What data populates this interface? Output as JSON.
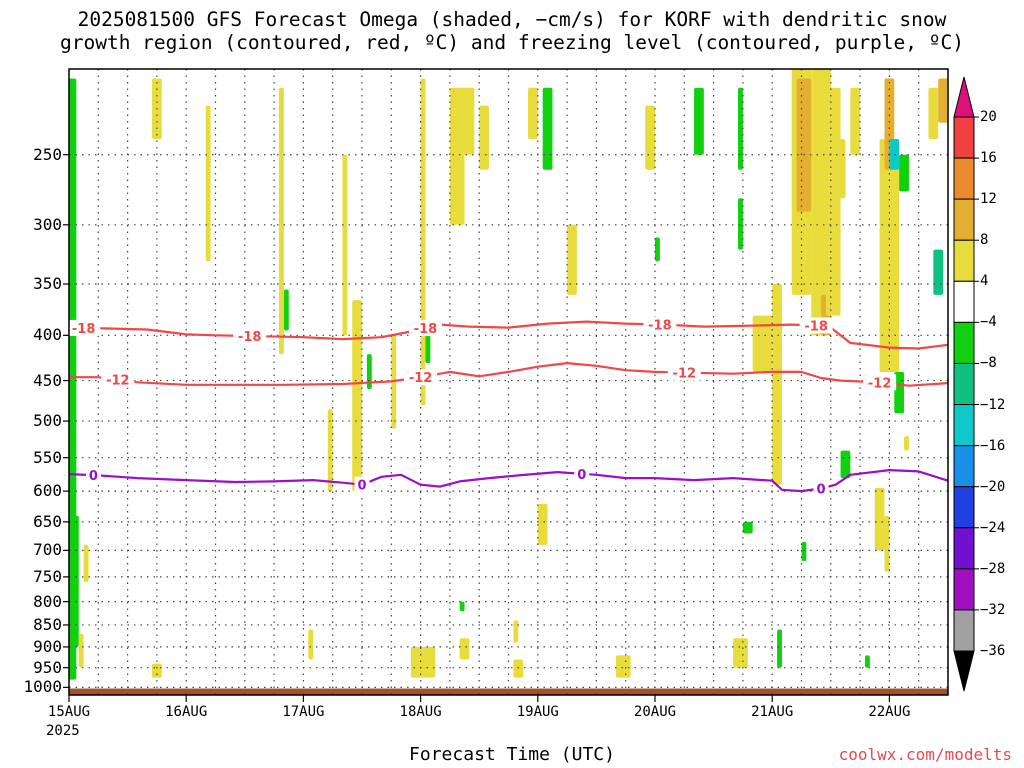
{
  "title_line1": "2025081500 GFS Forecast Omega (shaded, −cm/s) for KORF with dendritic snow",
  "title_line2": "growth region (contoured, red, ºC) and freezing level (contoured, purple, ºC)",
  "xlabel": "Forecast Time (UTC)",
  "year_label": "2025",
  "credit": "coolwx.com/modelts",
  "chart_data": {
    "type": "heatmap",
    "title": "2025081500 GFS Forecast Omega (shaded, −cm/s) for KORF with dendritic snow growth region (contoured, red, ºC) and freezing level (contoured, purple, ºC)",
    "xlabel": "Forecast Time (UTC)",
    "ylabel": "",
    "x_range_hours": [
      0,
      180
    ],
    "y_range_hPa": [
      1020,
      200
    ],
    "y_log_scale": true,
    "grid": true,
    "y_ticks": [
      250,
      300,
      350,
      400,
      450,
      500,
      550,
      600,
      650,
      700,
      750,
      800,
      850,
      900,
      950,
      1000
    ],
    "x_ticks": [
      {
        "label": "15AUG",
        "hour": 0
      },
      {
        "label": "16AUG",
        "hour": 24
      },
      {
        "label": "17AUG",
        "hour": 48
      },
      {
        "label": "18AUG",
        "hour": 72
      },
      {
        "label": "19AUG",
        "hour": 96
      },
      {
        "label": "20AUG",
        "hour": 120
      },
      {
        "label": "21AUG",
        "hour": 144
      },
      {
        "label": "22AUG",
        "hour": 168
      }
    ],
    "colorbar": {
      "labels": [
        "20",
        "16",
        "12",
        "8",
        "4",
        "−4",
        "−8",
        "−12",
        "−16",
        "−20",
        "−24",
        "−28",
        "−32",
        "−36"
      ],
      "top_arrow_color": "#e0107a",
      "bottom_arrow_color": "#000000",
      "bins": [
        {
          "range": [
            16,
            20
          ],
          "color": "#f04040"
        },
        {
          "range": [
            12,
            16
          ],
          "color": "#ec8a2e"
        },
        {
          "range": [
            8,
            12
          ],
          "color": "#e4ae30"
        },
        {
          "range": [
            4,
            8
          ],
          "color": "#e8dc3c"
        },
        {
          "range": [
            -4,
            4
          ],
          "color": "#ffffff"
        },
        {
          "range": [
            -8,
            -4
          ],
          "color": "#10d010"
        },
        {
          "range": [
            -12,
            -8
          ],
          "color": "#10c080"
        },
        {
          "range": [
            -16,
            -12
          ],
          "color": "#10c8c8"
        },
        {
          "range": [
            -20,
            -16
          ],
          "color": "#1890e8"
        },
        {
          "range": [
            -24,
            -20
          ],
          "color": "#2040e0"
        },
        {
          "range": [
            -28,
            -24
          ],
          "color": "#7010d0"
        },
        {
          "range": [
            -32,
            -28
          ],
          "color": "#a010c0"
        },
        {
          "range": [
            -36,
            -32
          ],
          "color": "#a0a0a0"
        }
      ]
    },
    "surface_color": "#a0522d",
    "contours": [
      {
        "name": "-18",
        "color": "#f04848",
        "label_hours": [
          3,
          37,
          73,
          121,
          153
        ],
        "points": [
          [
            0,
            392
          ],
          [
            8,
            393
          ],
          [
            16,
            394
          ],
          [
            24,
            399
          ],
          [
            30,
            400
          ],
          [
            40,
            401
          ],
          [
            48,
            402
          ],
          [
            56,
            404
          ],
          [
            64,
            402
          ],
          [
            70,
            396
          ],
          [
            76,
            389
          ],
          [
            82,
            391
          ],
          [
            90,
            392
          ],
          [
            98,
            388
          ],
          [
            106,
            386
          ],
          [
            114,
            388
          ],
          [
            122,
            389
          ],
          [
            130,
            391
          ],
          [
            140,
            390
          ],
          [
            148,
            389
          ],
          [
            154,
            390
          ],
          [
            156,
            392
          ],
          [
            160,
            408
          ],
          [
            168,
            413
          ],
          [
            174,
            414
          ],
          [
            180,
            410
          ]
        ]
      },
      {
        "name": "-12",
        "color": "#f04848",
        "label_hours": [
          10,
          72,
          126,
          166
        ],
        "points": [
          [
            0,
            446
          ],
          [
            6,
            446
          ],
          [
            14,
            452
          ],
          [
            24,
            455
          ],
          [
            34,
            455
          ],
          [
            44,
            455
          ],
          [
            56,
            454
          ],
          [
            66,
            451
          ],
          [
            72,
            446
          ],
          [
            78,
            440
          ],
          [
            84,
            445
          ],
          [
            90,
            440
          ],
          [
            96,
            434
          ],
          [
            102,
            430
          ],
          [
            108,
            433
          ],
          [
            114,
            438
          ],
          [
            120,
            440
          ],
          [
            128,
            441
          ],
          [
            136,
            442
          ],
          [
            144,
            440
          ],
          [
            150,
            440
          ],
          [
            154,
            447
          ],
          [
            158,
            450
          ],
          [
            166,
            452
          ],
          [
            172,
            456
          ],
          [
            180,
            453
          ]
        ]
      },
      {
        "name": "0",
        "color": "#9a10c8",
        "label_hours": [
          5,
          60,
          105,
          154
        ],
        "points": [
          [
            0,
            574
          ],
          [
            6,
            576
          ],
          [
            14,
            580
          ],
          [
            24,
            583
          ],
          [
            34,
            586
          ],
          [
            42,
            585
          ],
          [
            50,
            583
          ],
          [
            56,
            587
          ],
          [
            60,
            590
          ],
          [
            64,
            578
          ],
          [
            68,
            575
          ],
          [
            72,
            590
          ],
          [
            76,
            593
          ],
          [
            80,
            585
          ],
          [
            86,
            580
          ],
          [
            92,
            576
          ],
          [
            100,
            571
          ],
          [
            108,
            575
          ],
          [
            114,
            580
          ],
          [
            120,
            580
          ],
          [
            128,
            583
          ],
          [
            136,
            580
          ],
          [
            144,
            584
          ],
          [
            146,
            598
          ],
          [
            150,
            600
          ],
          [
            154,
            596
          ],
          [
            157,
            590
          ],
          [
            160,
            575
          ],
          [
            168,
            568
          ],
          [
            174,
            570
          ],
          [
            180,
            584
          ]
        ]
      }
    ],
    "regions": [
      {
        "hours": [
          0,
          1.5
        ],
        "hPa": [
          205,
          980
        ],
        "value": -6
      },
      {
        "hours": [
          0.5,
          2
        ],
        "hPa": [
          640,
          900
        ],
        "value": -6
      },
      {
        "hours": [
          2,
          3
        ],
        "hPa": [
          870,
          950
        ],
        "value": 5
      },
      {
        "hours": [
          3,
          4
        ],
        "hPa": [
          690,
          760
        ],
        "value": 5
      },
      {
        "hours": [
          17,
          19
        ],
        "hPa": [
          205,
          240
        ],
        "value": 5
      },
      {
        "hours": [
          17,
          19
        ],
        "hPa": [
          940,
          975
        ],
        "value": 5
      },
      {
        "hours": [
          28,
          29
        ],
        "hPa": [
          220,
          330
        ],
        "value": 5
      },
      {
        "hours": [
          43,
          44
        ],
        "hPa": [
          210,
          420
        ],
        "value": 5
      },
      {
        "hours": [
          44,
          45
        ],
        "hPa": [
          355,
          395
        ],
        "value": -6
      },
      {
        "hours": [
          49,
          50
        ],
        "hPa": [
          860,
          930
        ],
        "value": 5
      },
      {
        "hours": [
          53,
          54
        ],
        "hPa": [
          485,
          600
        ],
        "value": 5
      },
      {
        "hours": [
          56,
          57
        ],
        "hPa": [
          250,
          400
        ],
        "value": 5
      },
      {
        "hours": [
          58,
          60
        ],
        "hPa": [
          365,
          600
        ],
        "value": 5
      },
      {
        "hours": [
          61,
          62
        ],
        "hPa": [
          420,
          460
        ],
        "value": -6
      },
      {
        "hours": [
          66,
          67
        ],
        "hPa": [
          400,
          510
        ],
        "value": 5
      },
      {
        "hours": [
          72,
          73
        ],
        "hPa": [
          205,
          480
        ],
        "value": 5
      },
      {
        "hours": [
          70,
          75
        ],
        "hPa": [
          900,
          975
        ],
        "value": 5
      },
      {
        "hours": [
          73,
          74
        ],
        "hPa": [
          390,
          430
        ],
        "value": -6
      },
      {
        "hours": [
          78,
          81
        ],
        "hPa": [
          250,
          300
        ],
        "value": 5
      },
      {
        "hours": [
          78,
          83
        ],
        "hPa": [
          210,
          250
        ],
        "value": 5
      },
      {
        "hours": [
          80,
          82
        ],
        "hPa": [
          880,
          930
        ],
        "value": 5
      },
      {
        "hours": [
          80,
          81
        ],
        "hPa": [
          800,
          820
        ],
        "value": -6
      },
      {
        "hours": [
          84,
          86
        ],
        "hPa": [
          220,
          260
        ],
        "value": 5
      },
      {
        "hours": [
          91,
          92
        ],
        "hPa": [
          840,
          890
        ],
        "value": 5
      },
      {
        "hours": [
          94,
          96
        ],
        "hPa": [
          210,
          240
        ],
        "value": 5
      },
      {
        "hours": [
          91,
          93
        ],
        "hPa": [
          930,
          975
        ],
        "value": 5
      },
      {
        "hours": [
          97,
          99
        ],
        "hPa": [
          210,
          260
        ],
        "value": -6
      },
      {
        "hours": [
          96,
          98
        ],
        "hPa": [
          620,
          690
        ],
        "value": 5
      },
      {
        "hours": [
          102,
          104
        ],
        "hPa": [
          300,
          360
        ],
        "value": 5
      },
      {
        "hours": [
          112,
          115
        ],
        "hPa": [
          920,
          975
        ],
        "value": 5
      },
      {
        "hours": [
          118,
          120
        ],
        "hPa": [
          220,
          260
        ],
        "value": 5
      },
      {
        "hours": [
          120,
          121
        ],
        "hPa": [
          310,
          330
        ],
        "value": -6
      },
      {
        "hours": [
          128,
          130
        ],
        "hPa": [
          210,
          250
        ],
        "value": -6
      },
      {
        "hours": [
          138,
          140
        ],
        "hPa": [
          650,
          670
        ],
        "value": -6
      },
      {
        "hours": [
          136,
          139
        ],
        "hPa": [
          880,
          950
        ],
        "value": 5
      },
      {
        "hours": [
          137,
          138
        ],
        "hPa": [
          210,
          260
        ],
        "value": -6
      },
      {
        "hours": [
          137,
          138
        ],
        "hPa": [
          280,
          320
        ],
        "value": -6
      },
      {
        "hours": [
          140,
          144
        ],
        "hPa": [
          380,
          440
        ],
        "value": 5
      },
      {
        "hours": [
          144,
          146
        ],
        "hPa": [
          350,
          590
        ],
        "value": 5
      },
      {
        "hours": [
          145,
          146
        ],
        "hPa": [
          860,
          950
        ],
        "value": -6
      },
      {
        "hours": [
          148,
          152
        ],
        "hPa": [
          200,
          360
        ],
        "value": 5
      },
      {
        "hours": [
          149,
          152
        ],
        "hPa": [
          205,
          290
        ],
        "value": 10
      },
      {
        "hours": [
          150,
          151
        ],
        "hPa": [
          685,
          720
        ],
        "value": -6
      },
      {
        "hours": [
          152,
          156
        ],
        "hPa": [
          200,
          400
        ],
        "value": 5
      },
      {
        "hours": [
          154,
          156
        ],
        "hPa": [
          360,
          400
        ],
        "value": 10
      },
      {
        "hours": [
          155,
          158
        ],
        "hPa": [
          210,
          380
        ],
        "value": 5
      },
      {
        "hours": [
          157,
          159
        ],
        "hPa": [
          240,
          280
        ],
        "value": 5
      },
      {
        "hours": [
          160,
          162
        ],
        "hPa": [
          210,
          250
        ],
        "value": 5
      },
      {
        "hours": [
          158,
          160
        ],
        "hPa": [
          540,
          580
        ],
        "value": -6
      },
      {
        "hours": [
          163,
          164
        ],
        "hPa": [
          920,
          950
        ],
        "value": -6
      },
      {
        "hours": [
          165,
          167
        ],
        "hPa": [
          595,
          700
        ],
        "value": 5
      },
      {
        "hours": [
          167,
          168
        ],
        "hPa": [
          640,
          740
        ],
        "value": 5
      },
      {
        "hours": [
          166,
          170
        ],
        "hPa": [
          240,
          440
        ],
        "value": 5
      },
      {
        "hours": [
          167,
          169
        ],
        "hPa": [
          205,
          260
        ],
        "value": 10
      },
      {
        "hours": [
          168,
          170
        ],
        "hPa": [
          240,
          260
        ],
        "value": -14
      },
      {
        "hours": [
          169,
          171
        ],
        "hPa": [
          440,
          490
        ],
        "value": -6
      },
      {
        "hours": [
          170,
          172
        ],
        "hPa": [
          250,
          275
        ],
        "value": -6
      },
      {
        "hours": [
          171,
          172
        ],
        "hPa": [
          520,
          540
        ],
        "value": 5
      },
      {
        "hours": [
          176,
          178
        ],
        "hPa": [
          210,
          240
        ],
        "value": 5
      },
      {
        "hours": [
          177,
          179
        ],
        "hPa": [
          320,
          360
        ],
        "value": -9
      },
      {
        "hours": [
          178,
          180
        ],
        "hPa": [
          205,
          230
        ],
        "value": 10
      }
    ]
  }
}
